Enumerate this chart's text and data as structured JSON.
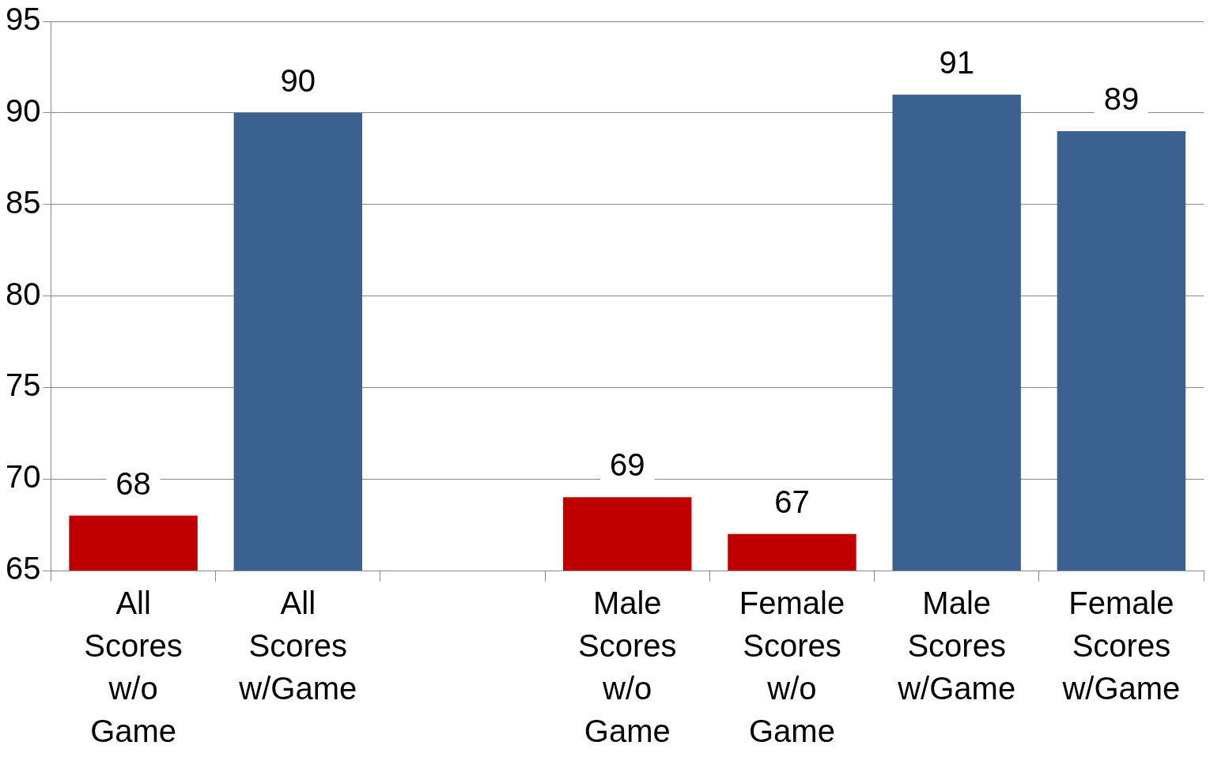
{
  "chart_data": {
    "type": "bar",
    "categories": [
      "All Scores w/o Game",
      "All Scores w/Game",
      null,
      "Male Scores w/o Game",
      "Female Scores w/o Game",
      "Male Scores w/Game",
      "Female Scores w/Game"
    ],
    "values": [
      68,
      90,
      null,
      69,
      67,
      91,
      89
    ],
    "colors": [
      "#c00000",
      "#3b6190",
      null,
      "#c00000",
      "#c00000",
      "#3b6190",
      "#3b6190"
    ],
    "ylim": [
      65,
      95
    ],
    "yticks": [
      65,
      70,
      75,
      80,
      85,
      90,
      95
    ],
    "grid": "y",
    "legend": false,
    "data_labels": true
  }
}
